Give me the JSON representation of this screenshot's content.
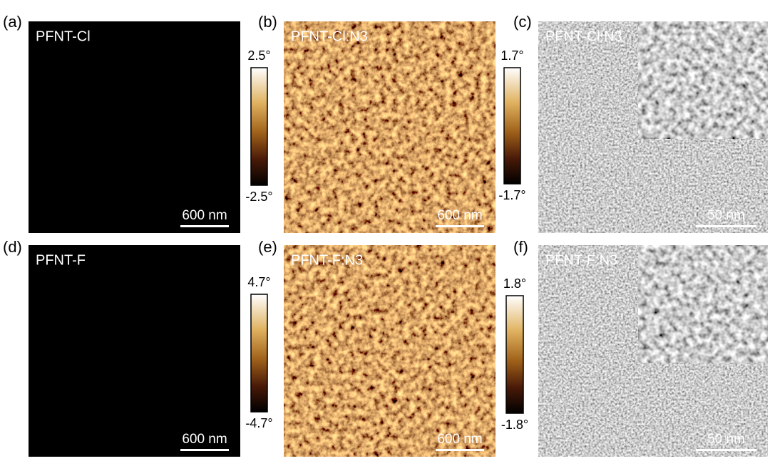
{
  "panels": [
    {
      "letter": "(a)",
      "name": "PFNT-Cl",
      "scale_bar": "600 nm"
    },
    {
      "letter": "(b)",
      "name": "PFNT-Cl:N3",
      "scale_bar": "600 nm"
    },
    {
      "letter": "(c)",
      "name": "PFNT-Cl:N3",
      "scale_bar": "50 nm"
    },
    {
      "letter": "(d)",
      "name": "PFNT-F",
      "scale_bar": "600 nm"
    },
    {
      "letter": "(e)",
      "name": "PFNT-F:N3",
      "scale_bar": "600 nm"
    },
    {
      "letter": "(f)",
      "name": "PFNT-F:N3",
      "scale_bar": "50 nm"
    }
  ],
  "colorbars": [
    {
      "max": "2.5°",
      "min": "-2.5°"
    },
    {
      "max": "1.7°",
      "min": "-1.7°"
    },
    {
      "max": "4.7°",
      "min": "-4.7°"
    },
    {
      "max": "1.8°",
      "min": "-1.8°"
    }
  ]
}
